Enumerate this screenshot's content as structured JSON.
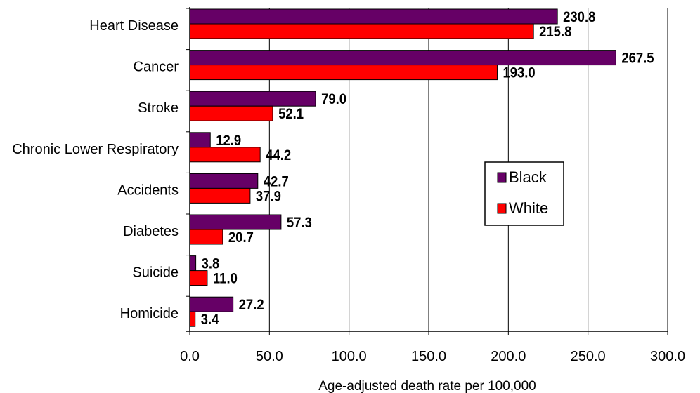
{
  "chart_data": {
    "type": "bar",
    "orientation": "horizontal",
    "categories": [
      "Heart Disease",
      "Cancer",
      "Stroke",
      "Chronic Lower Respiratory",
      "Accidents",
      "Diabetes",
      "Suicide",
      "Homicide"
    ],
    "series": [
      {
        "name": "Black",
        "color": "#660066",
        "values": [
          230.8,
          267.5,
          79.0,
          12.9,
          42.7,
          57.3,
          3.8,
          27.2
        ],
        "labels": [
          "230.8",
          "267.5",
          "79.0",
          "12.9",
          "42.7",
          "57.3",
          "3.8",
          "27.2"
        ]
      },
      {
        "name": "White",
        "color": "#ff0000",
        "values": [
          215.8,
          193.0,
          52.1,
          44.2,
          37.9,
          20.7,
          11.0,
          3.4
        ],
        "labels": [
          "215.8",
          "193.0",
          "52.1",
          "44.2",
          "37.9",
          "20.7",
          "11.0",
          "3.4"
        ]
      }
    ],
    "xlim": [
      0,
      300
    ],
    "xticks": [
      0,
      50,
      100,
      150,
      200,
      250,
      300
    ],
    "xtick_labels": [
      "0.0",
      "50.0",
      "100.0",
      "150.0",
      "200.0",
      "250.0",
      "300.0"
    ],
    "xlabel": "Age-adjusted death rate per 100,000",
    "grid": "vertical",
    "legend_position": "center-right"
  }
}
